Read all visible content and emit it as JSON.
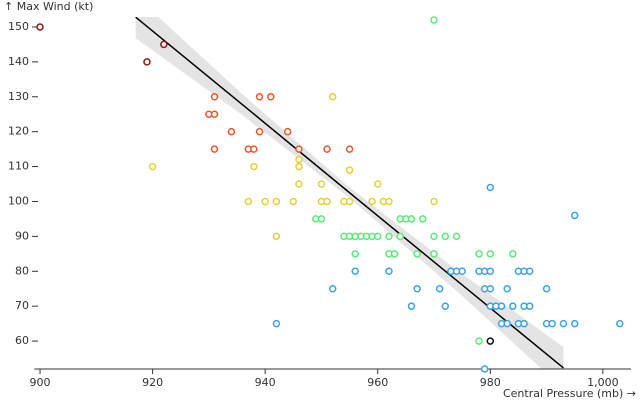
{
  "chart_data": {
    "type": "scatter",
    "x_label": "Central Pressure (mb) →",
    "y_label": "↑ Max Wind (kt)",
    "xlim": [
      899,
      1005
    ],
    "ylim": [
      52,
      153
    ],
    "xticks": [
      900,
      920,
      940,
      960,
      980,
      {
        "value": 1000,
        "label": "1,000"
      }
    ],
    "yticks": [
      60,
      70,
      80,
      90,
      100,
      110,
      120,
      130,
      140,
      150
    ],
    "trend": {
      "color": "#000000",
      "band_color": "#e4e4e4",
      "x": [
        917,
        936,
        955,
        974,
        993
      ],
      "y": [
        152.8,
        127.7,
        102.5,
        77.4,
        52.3
      ],
      "lower": [
        146.8,
        124.7,
        101,
        74.4,
        46.3
      ],
      "upper": [
        158.8,
        130.7,
        104,
        80.4,
        58.3
      ]
    },
    "series": [
      {
        "color": "#8b1a1a",
        "x": [
          900,
          922,
          919
        ],
        "y": [
          150,
          145,
          140
        ]
      },
      {
        "color": "#e8582a",
        "x": [
          931,
          939,
          941,
          930,
          931,
          934,
          939,
          944,
          937,
          938,
          931,
          946,
          951,
          955
        ],
        "y": [
          130,
          130,
          130,
          125,
          125,
          120,
          120,
          120,
          115,
          115,
          115,
          115,
          115,
          115
        ]
      },
      {
        "color": "#e6cf3a",
        "x": [
          952,
          920,
          938,
          946,
          946,
          955,
          946,
          950,
          960,
          937,
          940,
          942,
          945,
          950,
          951,
          954,
          955,
          959,
          961,
          962,
          970,
          942
        ],
        "y": [
          130,
          110,
          110,
          112,
          110,
          109,
          105,
          105,
          105,
          100,
          100,
          100,
          100,
          100,
          100,
          100,
          100,
          100,
          100,
          100,
          100,
          90
        ]
      },
      {
        "color": "#5ee87a",
        "x": [
          970,
          949,
          950,
          964,
          965,
          966,
          968,
          954,
          955,
          956,
          957,
          958,
          959,
          960,
          962,
          964,
          970,
          972,
          974,
          956,
          962,
          963,
          967,
          970,
          978,
          984,
          980,
          978
        ],
        "y": [
          152,
          95,
          95,
          95,
          95,
          95,
          95,
          90,
          90,
          90,
          90,
          90,
          90,
          90,
          90,
          90,
          90,
          90,
          90,
          85,
          85,
          85,
          85,
          85,
          85,
          85,
          85,
          60
        ]
      },
      {
        "color": "#3ba3e0",
        "x": [
          980,
          995,
          956,
          962,
          973,
          974,
          975,
          978,
          979,
          980,
          985,
          986,
          987,
          952,
          967,
          971,
          979,
          980,
          983,
          990,
          980,
          981,
          982,
          984,
          986,
          987,
          966,
          972,
          982,
          983,
          985,
          986,
          990,
          991,
          993,
          995,
          1003,
          942,
          979
        ],
        "y": [
          104,
          96,
          80,
          80,
          80,
          80,
          80,
          80,
          80,
          80,
          80,
          80,
          80,
          75,
          75,
          75,
          75,
          75,
          75,
          75,
          70,
          70,
          70,
          70,
          70,
          70,
          70,
          70,
          65,
          65,
          65,
          65,
          65,
          65,
          65,
          65,
          65,
          65,
          52
        ]
      },
      {
        "color": "#111111",
        "x": [
          980
        ],
        "y": [
          60
        ]
      }
    ]
  }
}
